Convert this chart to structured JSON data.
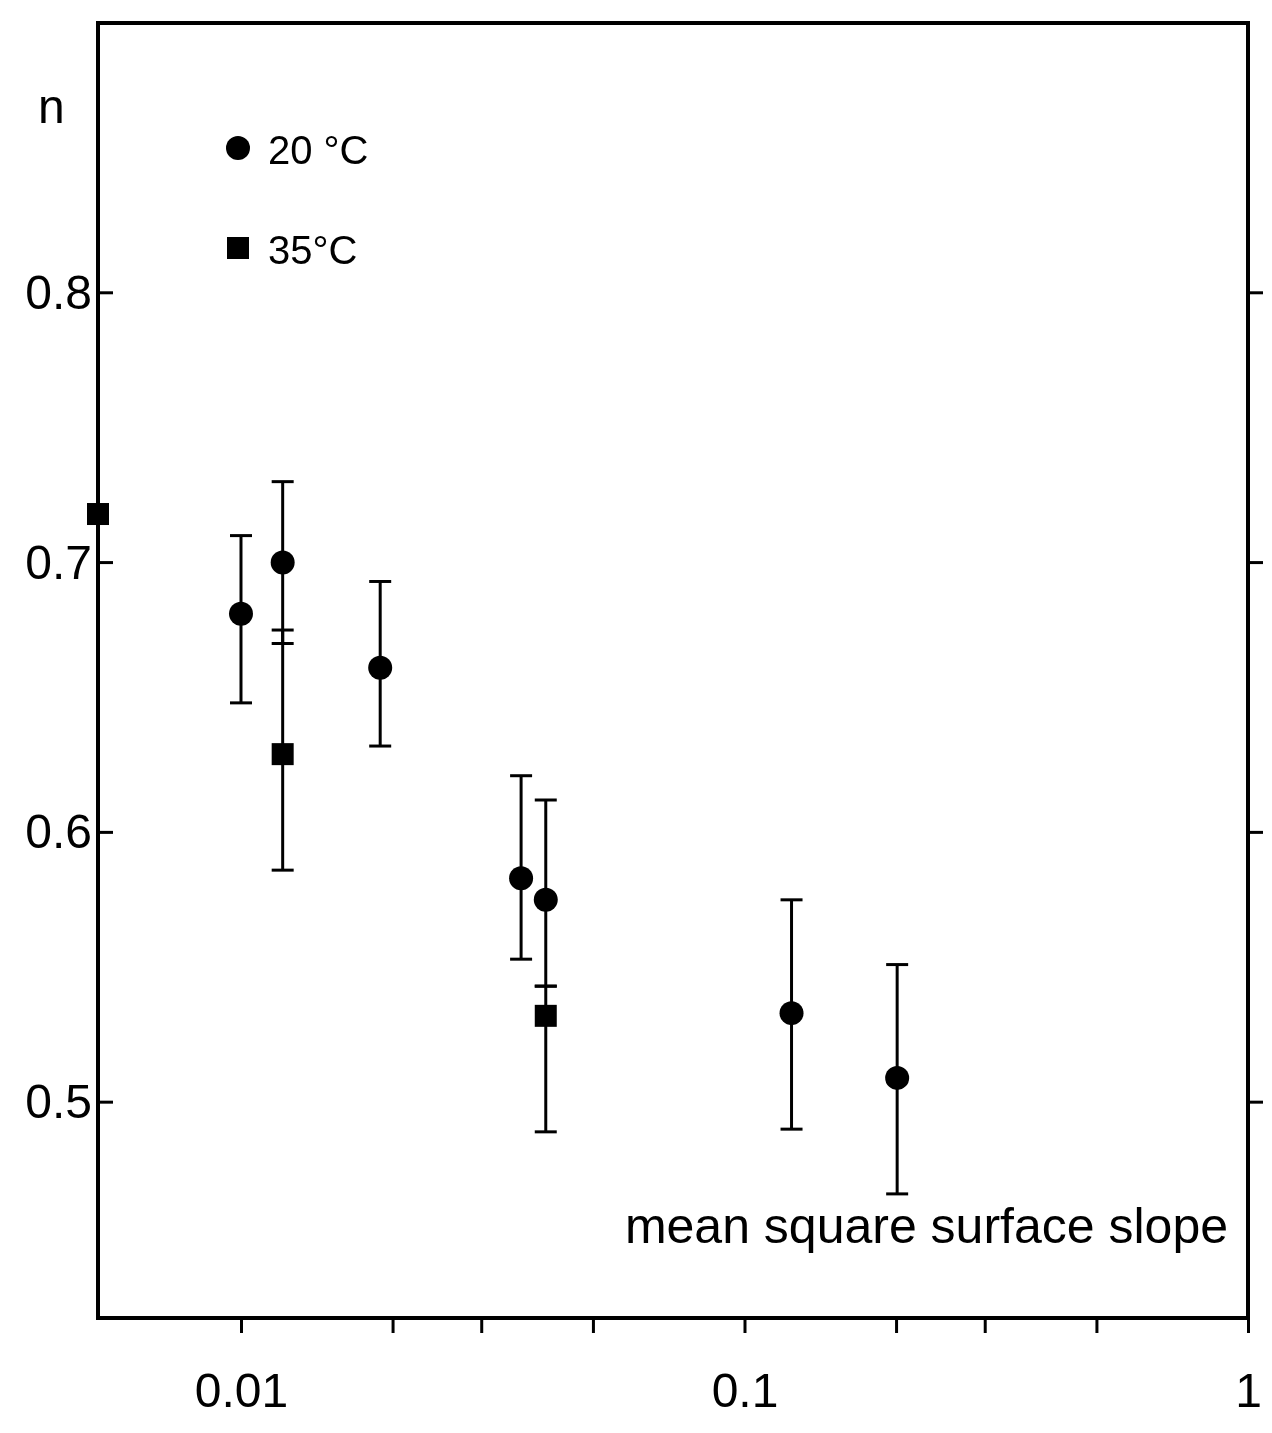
{
  "chart_data": {
    "type": "scatter",
    "xlabel": "mean square surface slope",
    "ylabel": "n",
    "log": "x",
    "xlim": [
      0.0052,
      1
    ],
    "ylim": [
      0.42,
      0.9
    ],
    "xticks": [
      0.01,
      {
        "value": 0.02,
        "label": null
      },
      {
        "value": 0.03,
        "label": null
      },
      {
        "value": 0.05,
        "label": null
      },
      0.1,
      {
        "value": 0.2,
        "label": null
      },
      {
        "value": 0.3,
        "label": null
      },
      {
        "value": 0.5,
        "label": null
      },
      1
    ],
    "yticks": [
      0.5,
      0.6,
      0.7,
      0.8
    ],
    "grid": false,
    "legend": "top left",
    "series": [
      {
        "name": "20 °C",
        "color": "#000000",
        "marker": "circle",
        "x": [
          0.01,
          0.0121,
          0.0189,
          0.036,
          0.0403,
          0.124,
          0.201
        ],
        "values": [
          0.681,
          0.7,
          0.661,
          0.583,
          0.575,
          0.533,
          0.509
        ],
        "errors": [
          [
            0.648,
            0.71
          ],
          [
            0.67,
            0.73
          ],
          [
            0.632,
            0.693
          ],
          [
            0.553,
            0.621
          ],
          [
            0.543,
            0.612
          ],
          [
            0.49,
            0.575
          ],
          [
            0.466,
            0.551
          ]
        ]
      },
      {
        "name": "35°C",
        "color": "#000000",
        "marker": "square",
        "x": [
          0.0052,
          0.0121,
          0.0403
        ],
        "values": [
          0.718,
          0.629,
          0.532
        ],
        "errors": [
          null,
          [
            0.586,
            0.675
          ],
          [
            0.489,
            0.543
          ]
        ]
      }
    ]
  }
}
